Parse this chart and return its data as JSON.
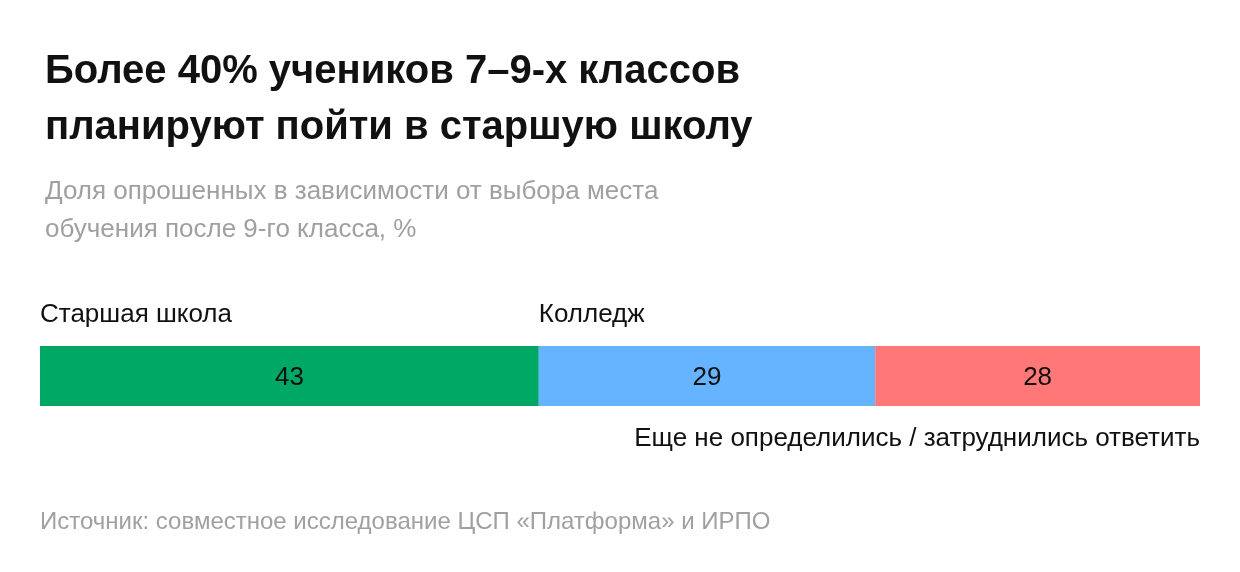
{
  "chart_data": {
    "type": "bar",
    "orientation": "horizontal",
    "stacked": true,
    "title": "Более 40% учеников 7–9-х классов планируют пойти в старшую школу",
    "subtitle": "Доля опрошенных в зависимости от выбора места обучения после 9-го класса, %",
    "categories": [
      null
    ],
    "series": [
      {
        "name": "Старшая школа",
        "color": "#00a866",
        "values": [
          43
        ]
      },
      {
        "name": "Колледж",
        "color": "#66b3ff",
        "values": [
          29
        ]
      },
      {
        "name": "Еще не определились / затруднились ответить",
        "color": "#ff7777",
        "values": [
          28
        ]
      }
    ],
    "xlim": [
      0,
      100
    ],
    "data_labels": true,
    "legend": false,
    "grid": false,
    "annotations": [
      "Источник: совместное исследование ЦСП «Платформа» и ИРПО"
    ]
  }
}
